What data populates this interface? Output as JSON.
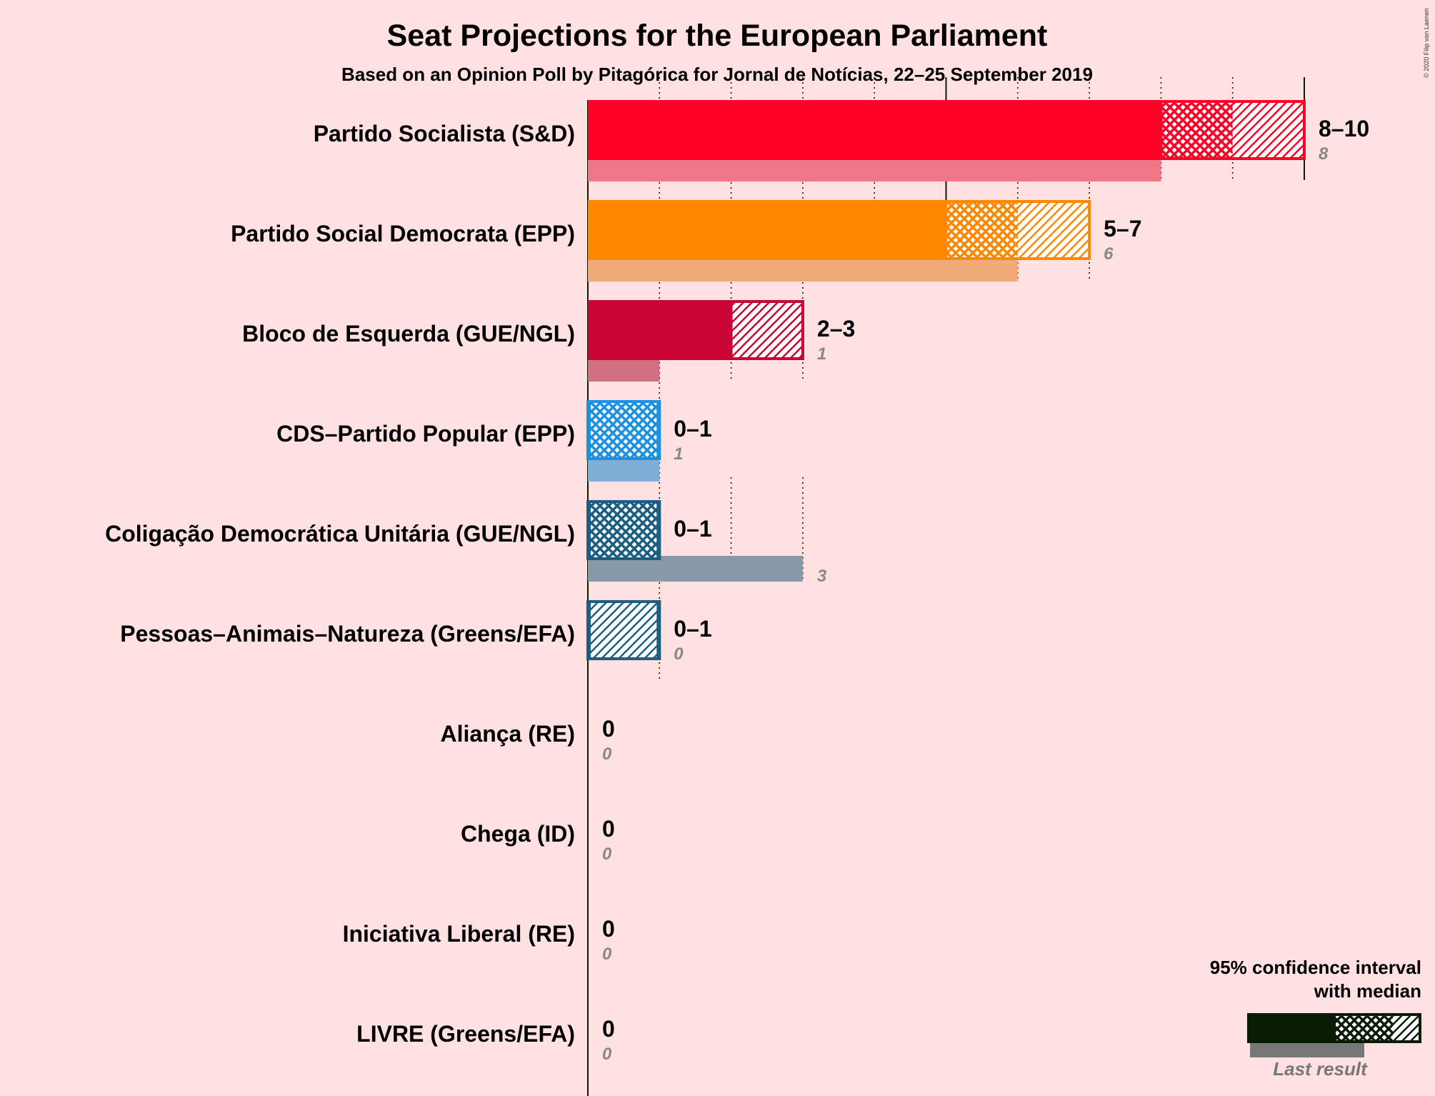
{
  "chart_data": {
    "type": "bar",
    "title": "Seat Projections for the European Parliament",
    "subtitle": "Based on an Opinion Poll by Pitagórica for Jornal de Notícias, 22–25 September 2019",
    "copyright": "© 2020 Filip van Laenen",
    "xlim": [
      0,
      10
    ],
    "x_gridlines": [
      1,
      2,
      3,
      4,
      5,
      6,
      7,
      8,
      9,
      10
    ],
    "x_major_lines": [
      0,
      5,
      10
    ],
    "parties": [
      {
        "name": "Partido Socialista (S&D)",
        "ci_low": 8,
        "median": 9,
        "ci_high": 10,
        "range_label": "8–10",
        "last_result": 8,
        "last_label": "8",
        "color": "#FF0026",
        "last_color": "#EE7788"
      },
      {
        "name": "Partido Social Democrata (EPP)",
        "ci_low": 5,
        "median": 6,
        "ci_high": 7,
        "range_label": "5–7",
        "last_result": 6,
        "last_label": "6",
        "color": "#FF8800",
        "last_color": "#EFAA77"
      },
      {
        "name": "Bloco de Esquerda (GUE/NGL)",
        "ci_low": 2,
        "median": 2,
        "ci_high": 3,
        "range_label": "2–3",
        "last_result": 1,
        "last_label": "1",
        "color": "#C90535",
        "last_color": "#D07080"
      },
      {
        "name": "CDS–Partido Popular (EPP)",
        "ci_low": 0,
        "median": 1,
        "ci_high": 1,
        "range_label": "0–1",
        "last_result": 1,
        "last_label": "1",
        "color": "#1E90E0",
        "last_color": "#7FAFD6"
      },
      {
        "name": "Coligação Democrática Unitária (GUE/NGL)",
        "ci_low": 0,
        "median": 1,
        "ci_high": 1,
        "range_label": "0–1",
        "last_result": 3,
        "last_label": "3",
        "color": "#1C5E82",
        "last_color": "#8899AA"
      },
      {
        "name": "Pessoas–Animais–Natureza (Greens/EFA)",
        "ci_low": 0,
        "median": 0,
        "ci_high": 1,
        "range_label": "0–1",
        "last_result": 0,
        "last_label": "0",
        "color": "#1C5E82",
        "last_color": "#8899AA"
      },
      {
        "name": "Aliança (RE)",
        "ci_low": 0,
        "median": 0,
        "ci_high": 0,
        "range_label": "0",
        "last_result": 0,
        "last_label": "0",
        "color": "#0A1C05",
        "last_color": "#888888"
      },
      {
        "name": "Chega (ID)",
        "ci_low": 0,
        "median": 0,
        "ci_high": 0,
        "range_label": "0",
        "last_result": 0,
        "last_label": "0",
        "color": "#0A1C05",
        "last_color": "#888888"
      },
      {
        "name": "Iniciativa Liberal (RE)",
        "ci_low": 0,
        "median": 0,
        "ci_high": 0,
        "range_label": "0",
        "last_result": 0,
        "last_label": "0",
        "color": "#0A1C05",
        "last_color": "#888888"
      },
      {
        "name": "LIVRE (Greens/EFA)",
        "ci_low": 0,
        "median": 0,
        "ci_high": 0,
        "range_label": "0",
        "last_result": 0,
        "last_label": "0",
        "color": "#0A1C05",
        "last_color": "#888888"
      }
    ],
    "legend": {
      "line1": "95% confidence interval",
      "line2": "with median",
      "last_result": "Last result",
      "placement": "bottom-right"
    }
  }
}
